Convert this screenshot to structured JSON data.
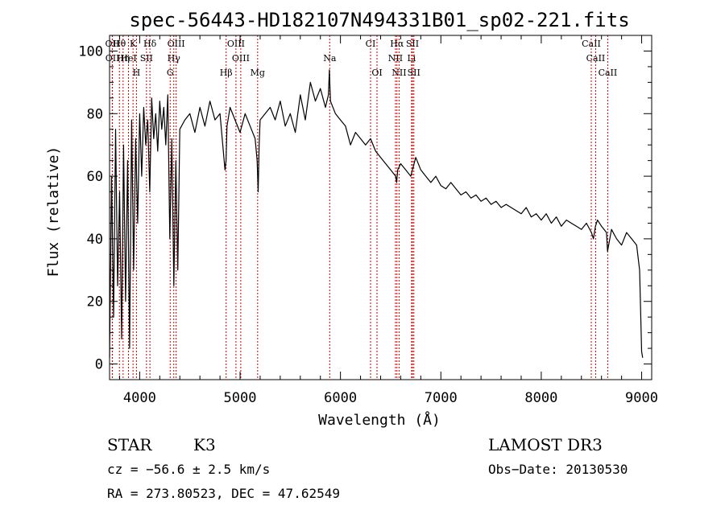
{
  "chart_data": {
    "type": "line",
    "title": "spec-56443-HD182107N494331B01_sp02-221.fits",
    "xlabel": "Wavelength (Å)",
    "ylabel": "Flux (relative)",
    "xlim": [
      3700,
      9100
    ],
    "ylim": [
      -5,
      105
    ],
    "xticks": [
      4000,
      5000,
      6000,
      7000,
      8000,
      9000
    ],
    "yticks": [
      0,
      20,
      40,
      60,
      80,
      100
    ],
    "x_minor_step": 200,
    "y_minor_step": 5,
    "series": [
      {
        "name": "flux",
        "x": [
          3700,
          3720,
          3740,
          3760,
          3780,
          3800,
          3820,
          3840,
          3860,
          3880,
          3900,
          3920,
          3940,
          3960,
          3980,
          4000,
          4020,
          4040,
          4060,
          4080,
          4100,
          4120,
          4140,
          4160,
          4180,
          4200,
          4220,
          4240,
          4260,
          4280,
          4300,
          4320,
          4340,
          4360,
          4380,
          4400,
          4450,
          4500,
          4550,
          4600,
          4650,
          4700,
          4750,
          4800,
          4850,
          4860,
          4870,
          4900,
          4950,
          5000,
          5050,
          5100,
          5150,
          5170,
          5180,
          5190,
          5200,
          5250,
          5300,
          5350,
          5400,
          5450,
          5500,
          5550,
          5600,
          5650,
          5700,
          5750,
          5800,
          5850,
          5880,
          5890,
          5900,
          5950,
          6000,
          6050,
          6100,
          6150,
          6200,
          6250,
          6300,
          6350,
          6400,
          6450,
          6500,
          6550,
          6560,
          6570,
          6600,
          6650,
          6700,
          6750,
          6800,
          6850,
          6900,
          6950,
          7000,
          7050,
          7100,
          7150,
          7200,
          7250,
          7300,
          7350,
          7400,
          7450,
          7500,
          7550,
          7600,
          7650,
          7700,
          7750,
          7800,
          7850,
          7900,
          7950,
          8000,
          8050,
          8100,
          8150,
          8200,
          8250,
          8300,
          8350,
          8400,
          8450,
          8500,
          8520,
          8540,
          8560,
          8600,
          8650,
          8660,
          8700,
          8750,
          8800,
          8850,
          8900,
          8950,
          8980,
          9000,
          9010
        ],
        "y": [
          2,
          60,
          15,
          75,
          25,
          55,
          8,
          70,
          20,
          65,
          5,
          78,
          30,
          72,
          45,
          80,
          60,
          82,
          70,
          78,
          55,
          85,
          72,
          80,
          68,
          84,
          75,
          82,
          70,
          86,
          40,
          72,
          25,
          65,
          30,
          75,
          78,
          80,
          74,
          82,
          76,
          84,
          78,
          80,
          62,
          65,
          76,
          82,
          78,
          74,
          80,
          76,
          72,
          65,
          55,
          70,
          78,
          80,
          82,
          78,
          84,
          76,
          80,
          74,
          86,
          78,
          90,
          84,
          88,
          82,
          86,
          94,
          84,
          80,
          78,
          76,
          70,
          74,
          72,
          70,
          72,
          68,
          66,
          64,
          62,
          60,
          58,
          62,
          64,
          62,
          60,
          66,
          62,
          60,
          58,
          60,
          57,
          56,
          58,
          56,
          54,
          55,
          53,
          54,
          52,
          53,
          51,
          52,
          50,
          51,
          50,
          49,
          48,
          50,
          47,
          48,
          46,
          48,
          45,
          47,
          44,
          46,
          45,
          44,
          43,
          45,
          42,
          40,
          44,
          46,
          44,
          42,
          36,
          43,
          40,
          38,
          42,
          40,
          38,
          30,
          4,
          2
        ]
      }
    ],
    "lines": {
      "series": [
        {
          "name": "labels",
          "labels": [
            "Hθ",
            "K",
            "Hδ",
            "OIII",
            "OIII",
            "CI",
            "Hα",
            "SII",
            "CaII",
            "OII",
            "HeI",
            "SII",
            "Hγ",
            "OIII",
            "Na",
            "NII",
            "Li",
            "CaII",
            "OII",
            "Hη",
            "H",
            "G",
            "Hβ",
            "Mg",
            "OI",
            "NII",
            "SII",
            "CaII"
          ]
        }
      ],
      "positions": [
        3798,
        3934,
        4102,
        4363,
        4959,
        6300,
        6563,
        6717,
        8498,
        3727,
        3889,
        4068,
        4340,
        5007,
        5893,
        6548,
        6708,
        8542,
        3729,
        3835,
        3968,
        4304,
        4861,
        5175,
        6364,
        6584,
        6731,
        8662
      ]
    },
    "annotations": {
      "object_type": "STAR",
      "subclass": "K3",
      "survey": "LAMOST DR3",
      "cz": "cz = −56.6 ± 2.5 km/s",
      "obs_date": "Obs−Date: 20130530",
      "coords": "RA = 273.80523, DEC =  47.62549"
    },
    "colors": {
      "line_marker": "#cc0000",
      "trace": "#000000",
      "axes": "#000000"
    }
  }
}
